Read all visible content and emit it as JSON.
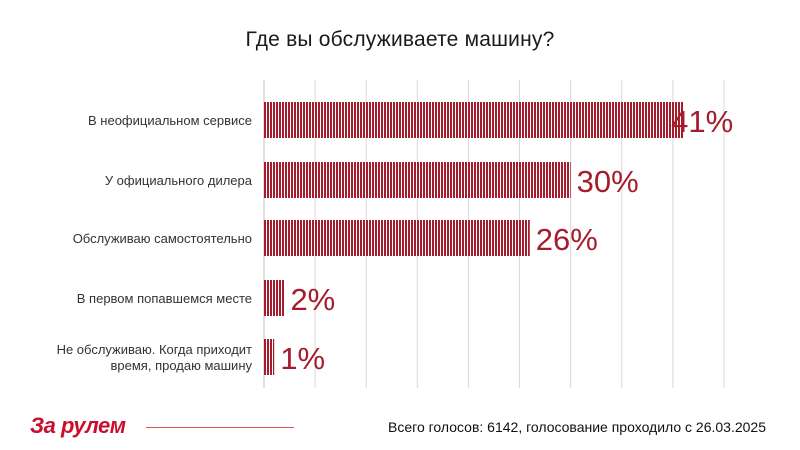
{
  "page": {
    "title": "Где вы обслуживаете машину?",
    "footer_note": "Всего голосов: 6142, голосование проходило с 26.03.2025",
    "logo_text": "За рулем"
  },
  "colors": {
    "bar": "#a51d2d",
    "value_label": "#a51d2d",
    "grid": "#d9d9d9",
    "logo": "#c8102e"
  },
  "chart_data": {
    "type": "bar",
    "orientation": "horizontal",
    "title": "Где вы обслуживаете машину?",
    "categories": [
      "В неофициальном сервисе",
      "У официального дилера",
      "Обслуживаю самостоятельно",
      "В первом попавшемся месте",
      "Не обслуживаю. Когда приходит время, продаю машину"
    ],
    "category_lines": [
      [
        "В неофициальном сервисе"
      ],
      [
        "У официального дилера"
      ],
      [
        "Обслуживаю самостоятельно"
      ],
      [
        "В первом попавшемся месте"
      ],
      [
        "Не обслуживаю. Когда приходит",
        "время, продаю машину"
      ]
    ],
    "values": [
      41,
      30,
      26,
      2,
      1
    ],
    "value_labels": [
      "41%",
      "30%",
      "26%",
      "2%",
      "1%"
    ],
    "xlim": [
      0,
      45
    ],
    "grid": true,
    "legend": "none"
  }
}
